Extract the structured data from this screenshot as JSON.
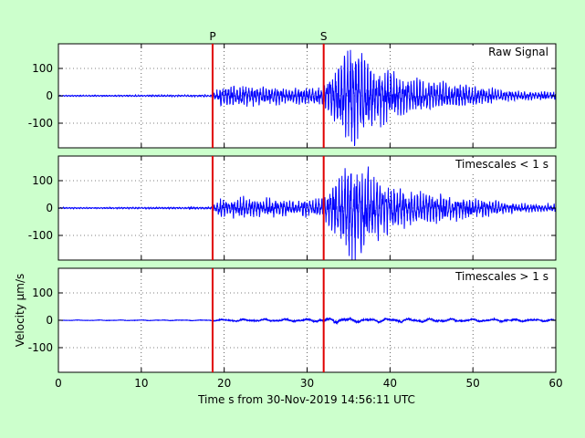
{
  "figure": {
    "background": "#ccffcc",
    "xlabel": "Time s from 30-Nov-2019 14:56:11 UTC",
    "ylabel": "Velocity μm/s",
    "phase_labels": [
      {
        "label": "P",
        "time": 18.6,
        "color": "#e00000"
      },
      {
        "label": "S",
        "time": 32.0,
        "color": "#e00000"
      }
    ],
    "trace_color": "#0000ff"
  },
  "chart_data": [
    {
      "type": "line",
      "title": "Raw Signal",
      "xlim": [
        0,
        60
      ],
      "ylim": [
        -190,
        190
      ],
      "xticks": [
        0,
        10,
        20,
        30,
        40,
        50,
        60
      ],
      "yticks": [
        -100,
        0,
        100
      ],
      "grid": true,
      "series": [
        {
          "envelope": [
            {
              "t": 0,
              "amp": 2
            },
            {
              "t": 18.5,
              "amp": 3
            },
            {
              "t": 19.5,
              "amp": 30
            },
            {
              "t": 22,
              "amp": 35
            },
            {
              "t": 28,
              "amp": 25
            },
            {
              "t": 32,
              "amp": 30
            },
            {
              "t": 34,
              "amp": 110
            },
            {
              "t": 35.5,
              "amp": 175
            },
            {
              "t": 38,
              "amp": 100
            },
            {
              "t": 42,
              "amp": 55
            },
            {
              "t": 48,
              "amp": 40
            },
            {
              "t": 55,
              "amp": 15
            },
            {
              "t": 60,
              "amp": 12
            }
          ],
          "dominant_period_s": 0.35
        }
      ]
    },
    {
      "type": "line",
      "title": "Timescales < 1 s",
      "xlim": [
        0,
        60
      ],
      "ylim": [
        -190,
        190
      ],
      "xticks": [
        0,
        10,
        20,
        30,
        40,
        50,
        60
      ],
      "yticks": [
        -100,
        0,
        100
      ],
      "grid": true,
      "series": [
        {
          "envelope": [
            {
              "t": 0,
              "amp": 2
            },
            {
              "t": 18.5,
              "amp": 3
            },
            {
              "t": 19.5,
              "amp": 30
            },
            {
              "t": 22,
              "amp": 35
            },
            {
              "t": 28,
              "amp": 25
            },
            {
              "t": 32,
              "amp": 30
            },
            {
              "t": 34,
              "amp": 110
            },
            {
              "t": 35.5,
              "amp": 170
            },
            {
              "t": 38,
              "amp": 100
            },
            {
              "t": 42,
              "amp": 55
            },
            {
              "t": 48,
              "amp": 40
            },
            {
              "t": 55,
              "amp": 15
            },
            {
              "t": 60,
              "amp": 12
            }
          ],
          "dominant_period_s": 0.35
        }
      ]
    },
    {
      "type": "line",
      "title": "Timescales > 1 s",
      "xlim": [
        0,
        60
      ],
      "ylim": [
        -190,
        190
      ],
      "xticks": [
        0,
        10,
        20,
        30,
        40,
        50,
        60
      ],
      "yticks": [
        -100,
        0,
        100
      ],
      "grid": true,
      "series": [
        {
          "envelope": [
            {
              "t": 0,
              "amp": 1
            },
            {
              "t": 18.5,
              "amp": 1.5
            },
            {
              "t": 20,
              "amp": 4
            },
            {
              "t": 30,
              "amp": 5
            },
            {
              "t": 32,
              "amp": 6
            },
            {
              "t": 33,
              "amp": 10
            },
            {
              "t": 36,
              "amp": 7
            },
            {
              "t": 45,
              "amp": 6
            },
            {
              "t": 60,
              "amp": 4
            }
          ],
          "dominant_period_s": 2.5
        }
      ]
    }
  ]
}
